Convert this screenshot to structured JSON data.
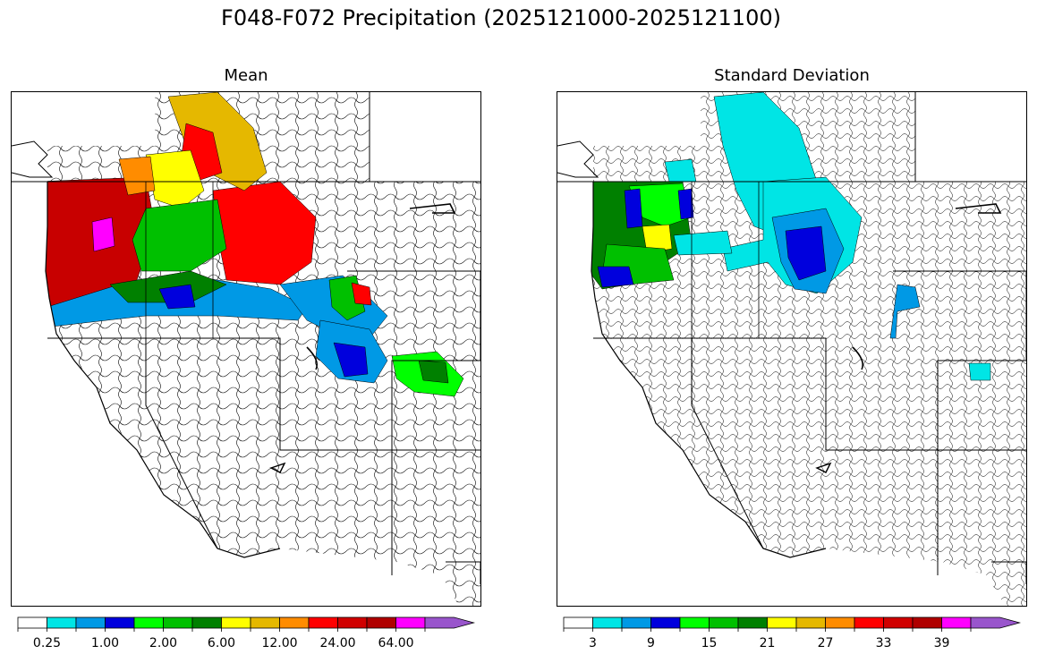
{
  "title": "F048-F072 Precipitation (2025121000-2025121100)",
  "panels": [
    {
      "id": "mean",
      "title": "Mean",
      "colorbar": {
        "colors": [
          "#ffffff",
          "#00e5e5",
          "#0099e5",
          "#0000dd",
          "#00ff00",
          "#00c000",
          "#008000",
          "#ffff00",
          "#e5b800",
          "#ff8c00",
          "#ff0000",
          "#d00000",
          "#b00000",
          "#ff00ff",
          "#9955cc"
        ],
        "tick_labels": [
          "0.25",
          "1.00",
          "2.00",
          "6.00",
          "12.00",
          "24.00",
          "64.00"
        ],
        "extend": "max"
      }
    },
    {
      "id": "stdev",
      "title": "Standard Deviation",
      "colorbar": {
        "colors": [
          "#ffffff",
          "#00e5e5",
          "#0099e5",
          "#0000dd",
          "#00ff00",
          "#00c000",
          "#008000",
          "#ffff00",
          "#e5b800",
          "#ff8c00",
          "#ff0000",
          "#d00000",
          "#b00000",
          "#ff00ff",
          "#9955cc"
        ],
        "tick_labels": [
          "3",
          "9",
          "15",
          "21",
          "27",
          "33",
          "39"
        ],
        "extend": "max"
      }
    }
  ]
}
